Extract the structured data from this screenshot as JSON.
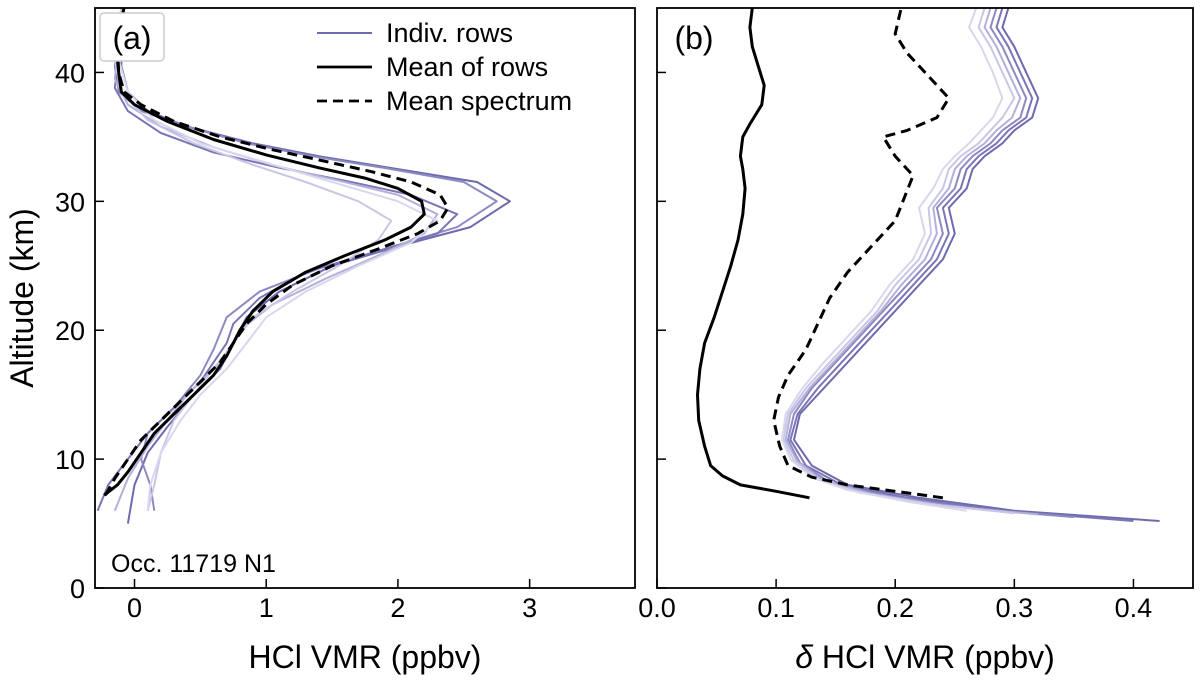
{
  "chart_data": [
    {
      "panel": "(a)",
      "type": "line",
      "xlabel": "HCl VMR (ppbv)",
      "ylabel": "Altitude (km)",
      "xlim": [
        -0.3,
        3.8
      ],
      "ylim": [
        0,
        45
      ],
      "xticks": [
        0,
        1,
        2,
        3
      ],
      "yticks": [
        0,
        10,
        20,
        30,
        40
      ],
      "annotation": "Occ. 11719 N1",
      "legend": [
        {
          "label": "Indiv. rows",
          "style": "solid",
          "color": "#6e6aae"
        },
        {
          "label": "Mean of rows",
          "style": "solid",
          "color": "#000000"
        },
        {
          "label": "Mean spectrum",
          "style": "dashed",
          "color": "#000000"
        }
      ],
      "series": [
        {
          "name": "Mean of rows",
          "style": "solid",
          "color": "#000000",
          "x": [
            -0.23,
            -0.13,
            -0.05,
            0.05,
            0.15,
            0.3,
            0.45,
            0.6,
            0.7,
            0.8,
            0.9,
            1.05,
            1.3,
            1.6,
            1.9,
            2.1,
            2.2,
            2.18,
            2.0,
            1.75,
            1.4,
            1.0,
            0.6,
            0.25,
            0.0,
            -0.1,
            -0.12,
            -0.14,
            -0.08
          ],
          "y": [
            7.2,
            8,
            9,
            10.5,
            12,
            13.5,
            15,
            16.5,
            18,
            20,
            21.5,
            23,
            24.5,
            25.8,
            27,
            28,
            29,
            30,
            31,
            31.8,
            32.6,
            33.6,
            34.8,
            36.2,
            37.5,
            38.5,
            40,
            42,
            45
          ]
        },
        {
          "name": "Mean spectrum",
          "style": "dashed",
          "color": "#000000",
          "x": [
            -0.22,
            -0.15,
            -0.05,
            0.05,
            0.2,
            0.35,
            0.5,
            0.65,
            0.75,
            0.85,
            1.0,
            1.2,
            1.5,
            1.85,
            2.15,
            2.32,
            2.38,
            2.32,
            2.1,
            1.8,
            1.45,
            1.05,
            0.65,
            0.3,
            0.05,
            -0.08,
            -0.12,
            -0.13,
            -0.08
          ],
          "y": [
            7.2,
            8.5,
            10,
            11.5,
            13,
            14.5,
            16,
            17.5,
            19,
            20.5,
            22,
            23.5,
            25,
            26.3,
            27.5,
            28.5,
            29.5,
            30.5,
            31.5,
            32.3,
            33.1,
            34,
            35,
            36.2,
            37.5,
            38.5,
            40,
            42,
            45
          ]
        },
        {
          "name": "Indiv. rows",
          "style": "solid",
          "color": "#6e6aae",
          "x": [
            -0.05,
            0.0,
            0.1,
            0.25,
            0.45,
            0.65,
            0.75,
            0.85,
            1.1,
            1.5,
            2.0,
            2.55,
            2.85,
            2.6,
            2.0,
            1.4,
            0.9,
            0.4,
            0.1,
            -0.05,
            -0.1,
            -0.08
          ],
          "y": [
            5,
            8,
            10.5,
            12.5,
            15,
            17,
            19,
            21,
            23,
            25,
            26.5,
            28,
            30,
            31.5,
            32.5,
            33.5,
            34.5,
            35.8,
            37,
            38.5,
            40.5,
            45
          ]
        },
        {
          "name": "Indiv. rows",
          "style": "solid",
          "color": "#8d8ac3",
          "x": [
            0.15,
            0.12,
            0.05,
            0.1,
            0.3,
            0.5,
            0.6,
            0.7,
            0.95,
            1.4,
            1.9,
            2.45,
            2.75,
            2.5,
            1.95,
            1.35,
            0.85,
            0.4,
            0.05,
            -0.12,
            -0.15,
            -0.1
          ],
          "y": [
            6,
            8,
            10,
            12,
            14,
            16.5,
            18.5,
            21,
            23,
            24.8,
            26.3,
            28,
            30,
            31.5,
            32.5,
            33.5,
            34.5,
            35.8,
            37,
            38.5,
            40.5,
            45
          ]
        },
        {
          "name": "Indiv. rows",
          "style": "solid",
          "color": "#7a76b6",
          "x": [
            -0.28,
            -0.2,
            -0.05,
            0.1,
            0.3,
            0.5,
            0.6,
            0.7,
            0.75,
            0.95,
            1.3,
            1.8,
            2.3,
            2.45,
            2.1,
            1.6,
            1.1,
            0.6,
            0.2,
            -0.05,
            -0.15,
            -0.12,
            -0.08
          ],
          "y": [
            6,
            8,
            10,
            12,
            14,
            16,
            17.5,
            19,
            20.5,
            22.5,
            24.5,
            26,
            27.5,
            29,
            30.5,
            31.6,
            32.6,
            33.8,
            35.3,
            37,
            38.8,
            41,
            45
          ]
        },
        {
          "name": "Indiv. rows",
          "style": "solid",
          "color": "#b3b0da",
          "x": [
            -0.15,
            -0.05,
            0.1,
            0.25,
            0.4,
            0.55,
            0.7,
            0.8,
            1.05,
            1.45,
            1.85,
            2.2,
            2.3,
            2.0,
            1.55,
            1.05,
            0.6,
            0.2,
            -0.05,
            -0.15,
            -0.12,
            -0.08
          ],
          "y": [
            6,
            8.5,
            11,
            13,
            15,
            16.5,
            18,
            20,
            22,
            24,
            25.8,
            27.5,
            29,
            30.5,
            31.6,
            32.8,
            34.2,
            35.8,
            37.5,
            39.5,
            42,
            45
          ]
        },
        {
          "name": "Indiv. rows",
          "style": "solid",
          "color": "#c9c7e5",
          "x": [
            0.1,
            0.15,
            0.2,
            0.3,
            0.45,
            0.6,
            0.75,
            0.9,
            1.2,
            1.55,
            1.85,
            1.95,
            1.7,
            1.3,
            0.85,
            0.45,
            0.1,
            -0.1,
            -0.15,
            -0.1
          ],
          "y": [
            6,
            8,
            10.5,
            13,
            15,
            17,
            19,
            21,
            23,
            25,
            27,
            28.5,
            30,
            31.5,
            33,
            34.5,
            36.3,
            38.5,
            41,
            45
          ]
        },
        {
          "name": "Indiv. rows",
          "style": "solid",
          "color": "#d8d7ee",
          "x": [
            0.1,
            0.12,
            0.2,
            0.35,
            0.5,
            0.7,
            0.85,
            1.0,
            1.3,
            1.7,
            2.1,
            2.3,
            2.0,
            1.5,
            1.0,
            0.5,
            0.15,
            -0.05,
            -0.12,
            -0.08
          ],
          "y": [
            6,
            8,
            10.5,
            13,
            15,
            17,
            19,
            21,
            23,
            25,
            26.8,
            28.5,
            30,
            31.5,
            33,
            34.5,
            36.3,
            38.5,
            41,
            45
          ]
        }
      ]
    },
    {
      "panel": "(b)",
      "type": "line",
      "xlabel": "δ HCl VMR (ppbv)",
      "ylabel": "",
      "xlim": [
        0.0,
        0.45
      ],
      "ylim": [
        0,
        45
      ],
      "xticks": [
        0.0,
        0.1,
        0.2,
        0.3,
        0.4
      ],
      "xtick_labels": [
        "0.0",
        "0.1",
        "0.2",
        "0.3",
        "0.4"
      ],
      "yticks": [
        0,
        10,
        20,
        30,
        40
      ],
      "series": [
        {
          "name": "Mean of rows",
          "style": "solid",
          "color": "#000000",
          "x": [
            0.128,
            0.1,
            0.07,
            0.055,
            0.045,
            0.04,
            0.035,
            0.034,
            0.036,
            0.04,
            0.048,
            0.055,
            0.062,
            0.068,
            0.072,
            0.074,
            0.072,
            0.07,
            0.072,
            0.078,
            0.088,
            0.09,
            0.085,
            0.08,
            0.078,
            0.08
          ],
          "y": [
            7,
            7.5,
            8,
            8.7,
            9.5,
            11,
            13,
            15,
            17,
            19,
            21,
            23,
            25,
            27,
            29,
            31,
            32.5,
            33.5,
            35,
            36,
            37.5,
            39,
            40.5,
            42,
            43.5,
            45
          ]
        },
        {
          "name": "Mean spectrum",
          "style": "dashed",
          "color": "#000000",
          "x": [
            0.24,
            0.2,
            0.16,
            0.13,
            0.11,
            0.103,
            0.098,
            0.102,
            0.11,
            0.125,
            0.135,
            0.145,
            0.16,
            0.18,
            0.2,
            0.215,
            0.2,
            0.19,
            0.21,
            0.235,
            0.245,
            0.225,
            0.21,
            0.2,
            0.205
          ],
          "y": [
            7,
            7.5,
            8,
            8.6,
            9.5,
            11,
            13,
            14.8,
            16.5,
            18.5,
            20.5,
            22.5,
            24.5,
            26.5,
            28.5,
            32,
            33.5,
            35,
            35.5,
            36.5,
            38,
            40,
            41.5,
            43,
            45
          ]
        },
        {
          "name": "Indiv. rows",
          "style": "solid",
          "color": "#6e6aae",
          "x": [
            0.422,
            0.3,
            0.22,
            0.16,
            0.13,
            0.115,
            0.12,
            0.14,
            0.16,
            0.18,
            0.2,
            0.22,
            0.24,
            0.25,
            0.245,
            0.26,
            0.265,
            0.275,
            0.29,
            0.3,
            0.315,
            0.32,
            0.31,
            0.3,
            0.29,
            0.295
          ],
          "y": [
            5.2,
            6,
            7,
            8,
            9.5,
            11.5,
            13.5,
            15.5,
            17.5,
            19.5,
            21.5,
            23.5,
            25.5,
            27.5,
            29.5,
            31,
            32.5,
            33.5,
            34.5,
            35.5,
            36.5,
            38,
            40,
            42,
            43.5,
            45
          ]
        },
        {
          "name": "Indiv. rows",
          "style": "solid",
          "color": "#7a76b6",
          "x": [
            0.4,
            0.29,
            0.21,
            0.155,
            0.125,
            0.112,
            0.118,
            0.135,
            0.155,
            0.175,
            0.195,
            0.215,
            0.235,
            0.245,
            0.24,
            0.255,
            0.26,
            0.27,
            0.285,
            0.295,
            0.31,
            0.315,
            0.305,
            0.295,
            0.285,
            0.29
          ],
          "y": [
            5.2,
            6,
            7,
            8,
            9.5,
            11.5,
            13.5,
            15.5,
            17.5,
            19.5,
            21.5,
            23.5,
            25.5,
            27.5,
            29.5,
            31,
            32.5,
            33.5,
            34.5,
            35.5,
            36.5,
            38,
            40,
            42,
            43.5,
            45
          ]
        },
        {
          "name": "Indiv. rows",
          "style": "solid",
          "color": "#8d8ac3",
          "x": [
            0.35,
            0.26,
            0.19,
            0.145,
            0.12,
            0.11,
            0.115,
            0.13,
            0.15,
            0.17,
            0.19,
            0.21,
            0.23,
            0.24,
            0.235,
            0.25,
            0.255,
            0.265,
            0.28,
            0.29,
            0.305,
            0.31,
            0.3,
            0.29,
            0.28,
            0.285
          ],
          "y": [
            5.5,
            6.2,
            7.2,
            8.2,
            9.7,
            11.5,
            13.5,
            15.5,
            17.5,
            19.5,
            21.5,
            23.5,
            25.5,
            27.5,
            29.5,
            31,
            32.5,
            33.5,
            34.5,
            35.5,
            36.5,
            38,
            40,
            42,
            43.5,
            45
          ]
        },
        {
          "name": "Indiv. rows",
          "style": "solid",
          "color": "#b3b0da",
          "x": [
            0.32,
            0.24,
            0.18,
            0.14,
            0.118,
            0.108,
            0.112,
            0.128,
            0.148,
            0.168,
            0.188,
            0.205,
            0.225,
            0.235,
            0.232,
            0.245,
            0.25,
            0.26,
            0.275,
            0.285,
            0.298,
            0.305,
            0.295,
            0.285,
            0.275,
            0.28
          ],
          "y": [
            5.7,
            6.4,
            7.3,
            8.3,
            9.8,
            11.5,
            13.5,
            15.5,
            17.5,
            19.5,
            21.5,
            23.5,
            25.5,
            27.5,
            29.5,
            31,
            32.5,
            33.5,
            34.5,
            35.5,
            36.5,
            38,
            40,
            42,
            43.5,
            45
          ]
        },
        {
          "name": "Indiv. rows",
          "style": "solid",
          "color": "#c9c7e5",
          "x": [
            0.3,
            0.23,
            0.17,
            0.135,
            0.115,
            0.106,
            0.11,
            0.125,
            0.145,
            0.165,
            0.185,
            0.2,
            0.22,
            0.23,
            0.228,
            0.24,
            0.245,
            0.255,
            0.27,
            0.28,
            0.29,
            0.3,
            0.29,
            0.28,
            0.27,
            0.275
          ],
          "y": [
            5.8,
            6.5,
            7.4,
            8.4,
            9.9,
            11.5,
            13.5,
            15.5,
            17.5,
            19.5,
            21.5,
            23.5,
            25.5,
            27.5,
            29.5,
            31,
            32.5,
            33.5,
            34.5,
            35.5,
            36.5,
            38,
            40,
            42,
            43.5,
            45
          ]
        },
        {
          "name": "Indiv. rows",
          "style": "solid",
          "color": "#d8d7ee",
          "x": [
            0.26,
            0.21,
            0.16,
            0.13,
            0.112,
            0.105,
            0.108,
            0.122,
            0.14,
            0.16,
            0.18,
            0.195,
            0.215,
            0.225,
            0.22,
            0.232,
            0.24,
            0.25,
            0.262,
            0.272,
            0.282,
            0.29,
            0.282,
            0.272,
            0.262,
            0.268
          ],
          "y": [
            6,
            6.7,
            7.6,
            8.6,
            10,
            11.5,
            13.5,
            15.5,
            17.5,
            19.5,
            21.5,
            23.5,
            25.5,
            27.5,
            29.5,
            31,
            32.5,
            33.5,
            34.5,
            35.5,
            36.5,
            38,
            40,
            42,
            43.5,
            45
          ]
        }
      ]
    }
  ]
}
